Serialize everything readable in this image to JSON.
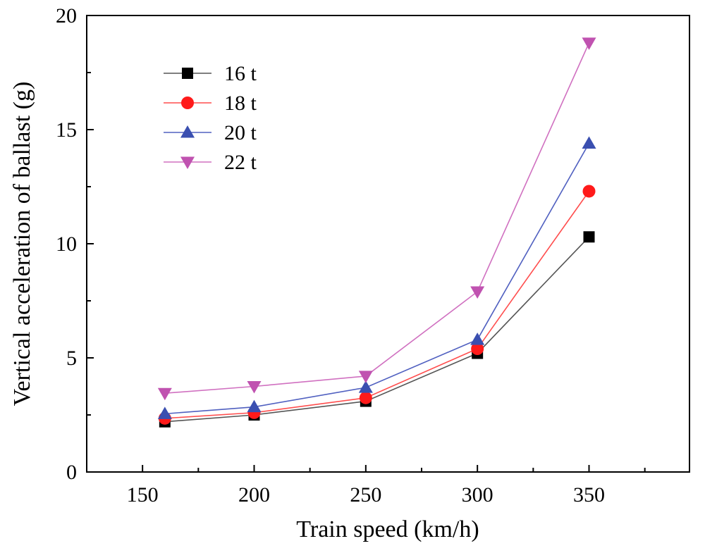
{
  "chart_data": {
    "type": "line",
    "title": "",
    "xlabel": "Train speed (km/h)",
    "ylabel": "Vertical acceleration of ballast (g)",
    "x": [
      160,
      200,
      250,
      300,
      350
    ],
    "xlim": [
      125,
      395
    ],
    "ylim": [
      0,
      20
    ],
    "xticks": [
      150,
      200,
      250,
      300,
      350
    ],
    "yticks": [
      0,
      5,
      10,
      15,
      20
    ],
    "grid": false,
    "legend_position": "top-left",
    "series": [
      {
        "name": "16 t",
        "marker": "square",
        "color": "#555555",
        "marker_color": "#000000",
        "values": [
          2.2,
          2.5,
          3.1,
          5.2,
          10.3
        ]
      },
      {
        "name": "18 t",
        "marker": "circle",
        "color": "#ff4d4d",
        "marker_color": "#ff1a1a",
        "values": [
          2.35,
          2.6,
          3.25,
          5.4,
          12.3
        ]
      },
      {
        "name": "20 t",
        "marker": "triangle-up",
        "color": "#5060c0",
        "marker_color": "#3a4fb0",
        "values": [
          2.55,
          2.85,
          3.7,
          5.8,
          14.4
        ]
      },
      {
        "name": "22 t",
        "marker": "triangle-down",
        "color": "#d070c0",
        "marker_color": "#c052b0",
        "values": [
          3.45,
          3.75,
          4.2,
          7.9,
          18.8
        ]
      }
    ]
  }
}
